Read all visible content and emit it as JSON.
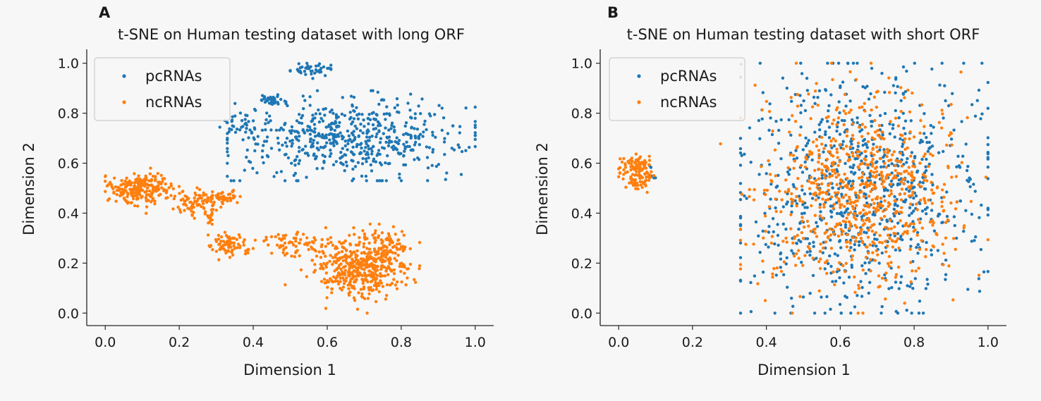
{
  "colors": {
    "pcRNAs": "#1f77b4",
    "ncRNAs": "#ff7f0e",
    "background": "#f7f7f7",
    "legend_border": "#cccccc",
    "axis": "#262626"
  },
  "chart_data": [
    {
      "type": "scatter",
      "panel": "A",
      "title": "t-SNE on Human testing dataset with long ORF",
      "xlabel": "Dimension 1",
      "ylabel": "Dimension 2",
      "xlim": [
        -0.05,
        1.05
      ],
      "ylim": [
        -0.05,
        1.05
      ],
      "xticks": [
        0.0,
        0.2,
        0.4,
        0.6,
        0.8,
        1.0
      ],
      "xtick_labels": [
        "0.0",
        "0.2",
        "0.4",
        "0.6",
        "0.8",
        "1.0"
      ],
      "yticks": [
        0.0,
        0.2,
        0.4,
        0.6,
        0.8,
        1.0
      ],
      "ytick_labels": [
        "0.0",
        "0.2",
        "0.4",
        "0.6",
        "0.8",
        "1.0"
      ],
      "legend": {
        "loc": "upper-left",
        "entries": [
          "pcRNAs",
          "ncRNAs"
        ]
      },
      "series": [
        {
          "name": "pcRNAs",
          "clusters": [
            {
              "cx": 0.66,
              "cy": 0.7,
              "sx": 0.16,
              "sy": 0.075,
              "n": 560,
              "xmin": 0.33,
              "xmax": 1.0,
              "ymin": 0.53,
              "ymax": 0.89
            },
            {
              "cx": 0.45,
              "cy": 0.85,
              "sx": 0.018,
              "sy": 0.012,
              "n": 35
            },
            {
              "cx": 0.56,
              "cy": 0.975,
              "sx": 0.035,
              "sy": 0.012,
              "n": 45,
              "xmin": 0.5,
              "xmax": 0.61,
              "ymax": 1.0
            },
            {
              "cx": 0.36,
              "cy": 0.76,
              "sx": 0.025,
              "sy": 0.025,
              "n": 30
            }
          ]
        },
        {
          "name": "ncRNAs",
          "clusters": [
            {
              "cx": 0.1,
              "cy": 0.5,
              "sx": 0.04,
              "sy": 0.03,
              "n": 230,
              "xmin": 0.0
            },
            {
              "cx": 0.25,
              "cy": 0.44,
              "sx": 0.03,
              "sy": 0.025,
              "n": 80
            },
            {
              "cx": 0.32,
              "cy": 0.46,
              "sx": 0.025,
              "sy": 0.012,
              "n": 50
            },
            {
              "cx": 0.285,
              "cy": 0.38,
              "sx": 0.008,
              "sy": 0.015,
              "n": 12
            },
            {
              "cx": 0.335,
              "cy": 0.27,
              "sx": 0.025,
              "sy": 0.025,
              "n": 80
            },
            {
              "cx": 0.51,
              "cy": 0.28,
              "sx": 0.05,
              "sy": 0.025,
              "n": 60
            },
            {
              "cx": 0.69,
              "cy": 0.19,
              "sx": 0.065,
              "sy": 0.065,
              "n": 440,
              "ymin": 0.0,
              "xmax": 0.85
            },
            {
              "cx": 0.76,
              "cy": 0.24,
              "sx": 0.03,
              "sy": 0.04,
              "n": 60
            }
          ]
        }
      ]
    },
    {
      "type": "scatter",
      "panel": "B",
      "title": "t-SNE on Human testing dataset with short ORF",
      "xlabel": "Dimension 1",
      "ylabel": "Dimension 2",
      "xlim": [
        -0.05,
        1.05
      ],
      "ylim": [
        -0.05,
        1.05
      ],
      "xticks": [
        0.0,
        0.2,
        0.4,
        0.6,
        0.8,
        1.0
      ],
      "xtick_labels": [
        "0.0",
        "0.2",
        "0.4",
        "0.6",
        "0.8",
        "1.0"
      ],
      "yticks": [
        0.0,
        0.2,
        0.4,
        0.6,
        0.8,
        1.0
      ],
      "ytick_labels": [
        "0.0",
        "0.2",
        "0.4",
        "0.6",
        "0.8",
        "1.0"
      ],
      "legend": {
        "loc": "upper-left",
        "entries": [
          "pcRNAs",
          "ncRNAs"
        ]
      },
      "series": [
        {
          "name": "pcRNAs",
          "clusters": [
            {
              "cx": 0.66,
              "cy": 0.5,
              "sx": 0.16,
              "sy": 0.24,
              "n": 820,
              "xmin": 0.33,
              "xmax": 1.0,
              "ymin": 0.0,
              "ymax": 1.0
            },
            {
              "cx": 0.09,
              "cy": 0.57,
              "sx": 0.01,
              "sy": 0.03,
              "n": 6
            }
          ]
        },
        {
          "name": "ncRNAs",
          "clusters": [
            {
              "cx": 0.65,
              "cy": 0.47,
              "sx": 0.13,
              "sy": 0.19,
              "n": 760,
              "xmin": 0.33,
              "xmax": 1.0,
              "ymin": 0.0,
              "ymax": 1.0
            },
            {
              "cx": 0.05,
              "cy": 0.57,
              "sx": 0.022,
              "sy": 0.03,
              "n": 130
            },
            {
              "cx": 0.27,
              "cy": 0.68,
              "sx": 0.003,
              "sy": 0.003,
              "n": 1
            }
          ]
        }
      ]
    }
  ]
}
